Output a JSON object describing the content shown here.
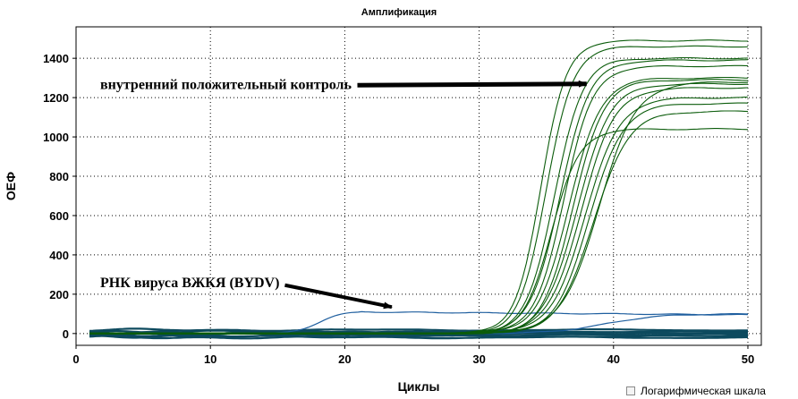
{
  "chart_data": {
    "type": "line",
    "title": "Амплификация",
    "xlabel": "Циклы",
    "ylabel": "ОЕФ",
    "xlim": [
      0,
      51
    ],
    "ylim": [
      -60,
      1560
    ],
    "xticks": [
      0,
      10,
      20,
      30,
      40,
      50
    ],
    "yticks": [
      0,
      200,
      400,
      600,
      800,
      1000,
      1200,
      1400
    ],
    "grid": true,
    "log_scale_checkbox": "Логарифмическая шкала",
    "positive_color": "#0b5c0b",
    "virus_color": "#1f5f9f",
    "baseline_color": "#0d4a5e",
    "annotations": [
      {
        "text": "внутренний положительный контроль",
        "x": 1,
        "y": 1270,
        "arrow_to": [
          38,
          1270
        ]
      },
      {
        "text": "РНК вируса ВЖКЯ (BYDV)",
        "x": 1,
        "y": 262,
        "arrow_to": [
          23.5,
          135
        ]
      }
    ],
    "positive_control_curves": [
      {
        "plateau": 1490,
        "midpoint": 34.6,
        "slope": 1.05
      },
      {
        "plateau": 1460,
        "midpoint": 35.0,
        "slope": 1.0
      },
      {
        "plateau": 1400,
        "midpoint": 35.6,
        "slope": 0.95
      },
      {
        "plateau": 1390,
        "midpoint": 36.0,
        "slope": 0.9
      },
      {
        "plateau": 1360,
        "midpoint": 36.3,
        "slope": 0.92
      },
      {
        "plateau": 1300,
        "midpoint": 36.7,
        "slope": 0.85
      },
      {
        "plateau": 1290,
        "midpoint": 37.0,
        "slope": 0.88
      },
      {
        "plateau": 1270,
        "midpoint": 37.3,
        "slope": 0.82
      },
      {
        "plateau": 1250,
        "midpoint": 37.6,
        "slope": 0.8
      },
      {
        "plateau": 1200,
        "midpoint": 37.9,
        "slope": 0.78
      },
      {
        "plateau": 1170,
        "midpoint": 38.2,
        "slope": 0.8
      },
      {
        "plateau": 1130,
        "midpoint": 38.5,
        "slope": 0.76
      },
      {
        "plateau": 1040,
        "midpoint": 35.4,
        "slope": 0.95
      },
      {
        "plateau": 1280,
        "midpoint": 38.9,
        "slope": 0.72
      }
    ],
    "virus_curves": [
      {
        "plateau": 110,
        "midpoint": 18.0,
        "slope": 1.2,
        "decay_after": 21,
        "decay_to": 95
      },
      {
        "plateau": 100,
        "midpoint": 39.5,
        "slope": 0.5
      }
    ],
    "baseline_curves": [
      {
        "offset": -8,
        "amp": 10
      },
      {
        "offset": 5,
        "amp": 8
      },
      {
        "offset": -3,
        "amp": 12
      },
      {
        "offset": 10,
        "amp": 6
      },
      {
        "offset": -14,
        "amp": 7
      },
      {
        "offset": 2,
        "amp": 9
      },
      {
        "offset": 18,
        "amp": 5
      },
      {
        "offset": -20,
        "amp": 6
      }
    ]
  }
}
